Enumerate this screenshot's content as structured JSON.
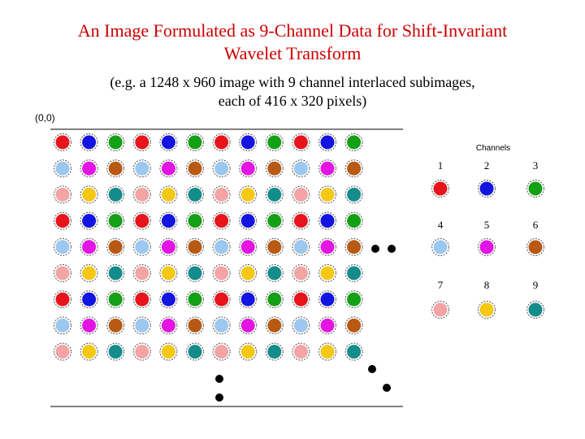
{
  "title_line1": "An Image Formulated as 9-Channel Data for Shift-Invariant",
  "title_line2": "Wavelet Transform",
  "subtitle_line1": "(e.g. a 1248 x 960 image with 9 channel interlaced subimages,",
  "subtitle_line2": "each of 416 x 320 pixels)",
  "origin_label": "(0,0)",
  "channels_heading": "Channels",
  "colors": {
    "c1": "#e8141c",
    "c2": "#1414e0",
    "c3": "#14a014",
    "c4": "#9cc8f0",
    "c5": "#e414e4",
    "c6": "#b85a14",
    "c7": "#f4a4a4",
    "c8": "#f4c814",
    "c9": "#148c8c"
  },
  "channels": [
    {
      "number": "1",
      "color_key": "c1"
    },
    {
      "number": "2",
      "color_key": "c2"
    },
    {
      "number": "3",
      "color_key": "c3"
    },
    {
      "number": "4",
      "color_key": "c4"
    },
    {
      "number": "5",
      "color_key": "c5"
    },
    {
      "number": "6",
      "color_key": "c6"
    },
    {
      "number": "7",
      "color_key": "c7"
    },
    {
      "number": "8",
      "color_key": "c8"
    },
    {
      "number": "9",
      "color_key": "c9"
    }
  ]
}
